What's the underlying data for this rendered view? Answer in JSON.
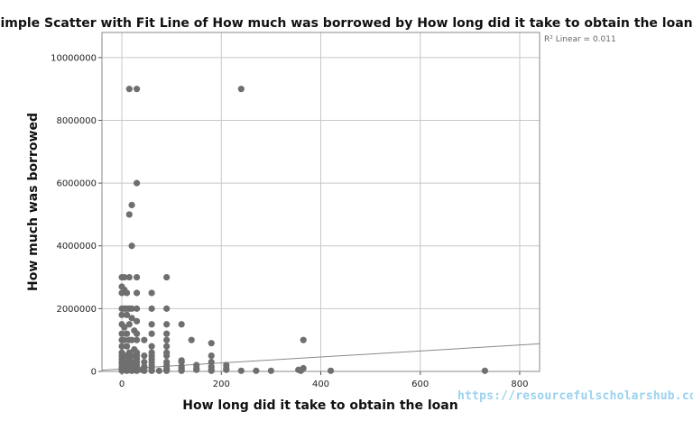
{
  "chart_data": {
    "type": "scatter",
    "title": "Simple Scatter with Fit Line of How much was borrowed by How long did it take to obtain the loan",
    "xlabel": "How long did it take to obtain the loan",
    "ylabel": "How much was borrowed",
    "xlim": [
      -40,
      840
    ],
    "ylim": [
      0,
      10800000
    ],
    "x_ticks": [
      0,
      200,
      400,
      600,
      800
    ],
    "y_ticks": [
      0,
      2000000,
      4000000,
      6000000,
      8000000,
      10000000
    ],
    "x_tick_labels": [
      "0",
      "200",
      "400",
      "600",
      "800"
    ],
    "y_tick_labels": [
      "0",
      "2000000",
      "4000000",
      "6000000",
      "8000000",
      "10000000"
    ],
    "grid": "both",
    "fit_line": {
      "label": "R² Linear = 0.011",
      "x0": -40,
      "y0": 40000,
      "x1": 840,
      "y1": 880000
    },
    "point_color": "#6f6f6f",
    "points": [
      [
        15,
        9000000
      ],
      [
        30,
        9000000
      ],
      [
        240,
        9000000
      ],
      [
        30,
        6000000
      ],
      [
        20,
        5300000
      ],
      [
        15,
        5000000
      ],
      [
        20,
        4000000
      ],
      [
        0,
        3000000
      ],
      [
        5,
        3000000
      ],
      [
        15,
        3000000
      ],
      [
        30,
        3000000
      ],
      [
        90,
        3000000
      ],
      [
        0,
        2700000
      ],
      [
        5,
        2600000
      ],
      [
        0,
        2500000
      ],
      [
        10,
        2500000
      ],
      [
        30,
        2500000
      ],
      [
        60,
        2500000
      ],
      [
        0,
        2000000
      ],
      [
        5,
        2000000
      ],
      [
        10,
        2000000
      ],
      [
        15,
        2000000
      ],
      [
        20,
        2000000
      ],
      [
        30,
        2000000
      ],
      [
        60,
        2000000
      ],
      [
        90,
        2000000
      ],
      [
        0,
        1800000
      ],
      [
        10,
        1800000
      ],
      [
        20,
        1700000
      ],
      [
        30,
        1600000
      ],
      [
        0,
        1500000
      ],
      [
        15,
        1500000
      ],
      [
        60,
        1500000
      ],
      [
        90,
        1500000
      ],
      [
        120,
        1500000
      ],
      [
        5,
        1400000
      ],
      [
        25,
        1300000
      ],
      [
        0,
        1200000
      ],
      [
        10,
        1200000
      ],
      [
        30,
        1200000
      ],
      [
        60,
        1200000
      ],
      [
        90,
        1200000
      ],
      [
        0,
        1000000
      ],
      [
        5,
        1000000
      ],
      [
        15,
        1000000
      ],
      [
        20,
        1000000
      ],
      [
        30,
        1000000
      ],
      [
        45,
        1000000
      ],
      [
        90,
        1000000
      ],
      [
        140,
        1000000
      ],
      [
        365,
        1000000
      ],
      [
        180,
        900000
      ],
      [
        60,
        800000
      ],
      [
        90,
        800000
      ],
      [
        0,
        800000
      ],
      [
        10,
        800000
      ],
      [
        25,
        700000
      ],
      [
        0,
        600000
      ],
      [
        15,
        600000
      ],
      [
        30,
        600000
      ],
      [
        60,
        600000
      ],
      [
        90,
        600000
      ],
      [
        0,
        500000
      ],
      [
        5,
        500000
      ],
      [
        10,
        500000
      ],
      [
        20,
        500000
      ],
      [
        30,
        500000
      ],
      [
        45,
        500000
      ],
      [
        60,
        500000
      ],
      [
        90,
        500000
      ],
      [
        180,
        500000
      ],
      [
        0,
        400000
      ],
      [
        15,
        400000
      ],
      [
        30,
        400000
      ],
      [
        60,
        400000
      ],
      [
        120,
        350000
      ],
      [
        0,
        300000
      ],
      [
        5,
        300000
      ],
      [
        10,
        300000
      ],
      [
        20,
        300000
      ],
      [
        30,
        300000
      ],
      [
        45,
        300000
      ],
      [
        60,
        300000
      ],
      [
        90,
        300000
      ],
      [
        120,
        300000
      ],
      [
        180,
        300000
      ],
      [
        0,
        250000
      ],
      [
        15,
        250000
      ],
      [
        30,
        200000
      ],
      [
        60,
        200000
      ],
      [
        90,
        200000
      ],
      [
        150,
        200000
      ],
      [
        210,
        200000
      ],
      [
        0,
        150000
      ],
      [
        5,
        150000
      ],
      [
        10,
        150000
      ],
      [
        20,
        150000
      ],
      [
        45,
        150000
      ],
      [
        120,
        150000
      ],
      [
        180,
        150000
      ],
      [
        0,
        100000
      ],
      [
        5,
        100000
      ],
      [
        10,
        100000
      ],
      [
        15,
        100000
      ],
      [
        20,
        100000
      ],
      [
        30,
        100000
      ],
      [
        45,
        100000
      ],
      [
        60,
        100000
      ],
      [
        90,
        100000
      ],
      [
        120,
        100000
      ],
      [
        150,
        100000
      ],
      [
        210,
        100000
      ],
      [
        365,
        100000
      ],
      [
        0,
        50000
      ],
      [
        5,
        50000
      ],
      [
        10,
        50000
      ],
      [
        15,
        50000
      ],
      [
        20,
        50000
      ],
      [
        25,
        50000
      ],
      [
        30,
        50000
      ],
      [
        40,
        50000
      ],
      [
        60,
        50000
      ],
      [
        90,
        50000
      ],
      [
        120,
        50000
      ],
      [
        150,
        50000
      ],
      [
        180,
        50000
      ],
      [
        210,
        50000
      ],
      [
        355,
        50000
      ],
      [
        0,
        20000
      ],
      [
        10,
        20000
      ],
      [
        20,
        20000
      ],
      [
        30,
        20000
      ],
      [
        45,
        20000
      ],
      [
        60,
        20000
      ],
      [
        75,
        20000
      ],
      [
        90,
        20000
      ],
      [
        120,
        20000
      ],
      [
        180,
        20000
      ],
      [
        240,
        20000
      ],
      [
        270,
        20000
      ],
      [
        300,
        20000
      ],
      [
        360,
        20000
      ],
      [
        420,
        20000
      ],
      [
        730,
        20000
      ]
    ]
  },
  "watermark": "https://resourcefulscholarshub.com"
}
